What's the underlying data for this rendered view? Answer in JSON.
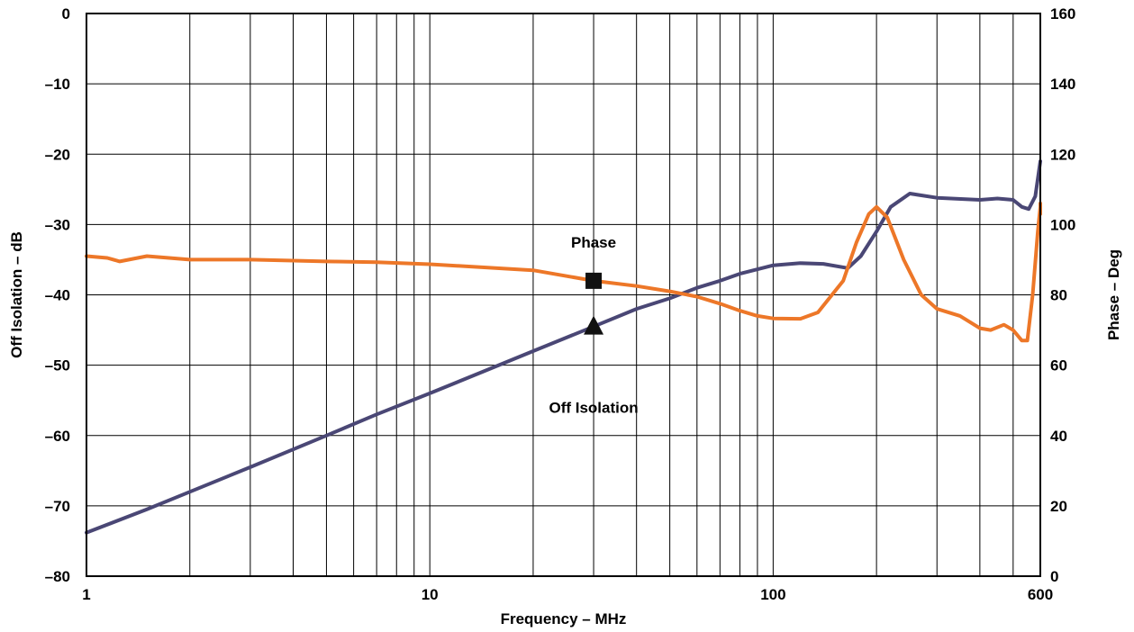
{
  "chart_data": {
    "type": "line",
    "xlabel": "Frequency – MHz",
    "ylabel_left": "Off Isolation – dB",
    "ylabel_right": "Phase – Deg",
    "x_scale": "log",
    "xlim": [
      1,
      600
    ],
    "ylim_left": [
      -80,
      0
    ],
    "ylim_right": [
      0,
      160
    ],
    "grid": true,
    "x_ticks": [
      {
        "value": 1,
        "label": "1"
      },
      {
        "value": 10,
        "label": "10"
      },
      {
        "value": 100,
        "label": "100"
      },
      {
        "value": 600,
        "label": "600"
      }
    ],
    "y_left_ticks": [
      {
        "value": 0,
        "label": "0"
      },
      {
        "value": -10,
        "label": "–10"
      },
      {
        "value": -20,
        "label": "–20"
      },
      {
        "value": -30,
        "label": "–30"
      },
      {
        "value": -40,
        "label": "–40"
      },
      {
        "value": -50,
        "label": "–50"
      },
      {
        "value": -60,
        "label": "–60"
      },
      {
        "value": -70,
        "label": "–70"
      },
      {
        "value": -80,
        "label": "–80"
      }
    ],
    "y_right_ticks": [
      {
        "value": 0,
        "label": "0"
      },
      {
        "value": 20,
        "label": "20"
      },
      {
        "value": 40,
        "label": "40"
      },
      {
        "value": 60,
        "label": "60"
      },
      {
        "value": 80,
        "label": "80"
      },
      {
        "value": 100,
        "label": "100"
      },
      {
        "value": 120,
        "label": "120"
      },
      {
        "value": 140,
        "label": "140"
      },
      {
        "value": 160,
        "label": "160"
      }
    ],
    "series": [
      {
        "name": "Off Isolation",
        "axis": "left",
        "color": "#4a4775",
        "marker": "triangle",
        "marker_at": {
          "x": 30,
          "y": -44.5
        },
        "points": [
          {
            "x": 1,
            "y": -73.8
          },
          {
            "x": 1.5,
            "y": -70.5
          },
          {
            "x": 2,
            "y": -68
          },
          {
            "x": 3,
            "y": -64.5
          },
          {
            "x": 5,
            "y": -60
          },
          {
            "x": 7,
            "y": -57
          },
          {
            "x": 10,
            "y": -54
          },
          {
            "x": 15,
            "y": -50.5
          },
          {
            "x": 20,
            "y": -48
          },
          {
            "x": 30,
            "y": -44.5
          },
          {
            "x": 40,
            "y": -42
          },
          {
            "x": 50,
            "y": -40.5
          },
          {
            "x": 60,
            "y": -39
          },
          {
            "x": 70,
            "y": -38
          },
          {
            "x": 80,
            "y": -37
          },
          {
            "x": 100,
            "y": -35.8
          },
          {
            "x": 120,
            "y": -35.5
          },
          {
            "x": 140,
            "y": -35.6
          },
          {
            "x": 165,
            "y": -36.2
          },
          {
            "x": 180,
            "y": -34.5
          },
          {
            "x": 200,
            "y": -31
          },
          {
            "x": 220,
            "y": -27.5
          },
          {
            "x": 250,
            "y": -25.6
          },
          {
            "x": 300,
            "y": -26.2
          },
          {
            "x": 400,
            "y": -26.5
          },
          {
            "x": 450,
            "y": -26.3
          },
          {
            "x": 500,
            "y": -26.5
          },
          {
            "x": 530,
            "y": -27.5
          },
          {
            "x": 555,
            "y": -27.8
          },
          {
            "x": 580,
            "y": -26
          },
          {
            "x": 600,
            "y": -21
          }
        ]
      },
      {
        "name": "Phase",
        "axis": "right",
        "color": "#ed7728",
        "marker": "square",
        "marker_at": {
          "x": 30,
          "y": 84
        },
        "points": [
          {
            "x": 1,
            "y": 91
          },
          {
            "x": 1.15,
            "y": 90.5
          },
          {
            "x": 1.25,
            "y": 89.5
          },
          {
            "x": 1.5,
            "y": 91
          },
          {
            "x": 2,
            "y": 90
          },
          {
            "x": 3,
            "y": 90
          },
          {
            "x": 5,
            "y": 89.5
          },
          {
            "x": 7,
            "y": 89.3
          },
          {
            "x": 10,
            "y": 88.7
          },
          {
            "x": 20,
            "y": 87
          },
          {
            "x": 30,
            "y": 84
          },
          {
            "x": 40,
            "y": 82.5
          },
          {
            "x": 50,
            "y": 81
          },
          {
            "x": 60,
            "y": 79.5
          },
          {
            "x": 70,
            "y": 77.5
          },
          {
            "x": 80,
            "y": 75.5
          },
          {
            "x": 90,
            "y": 74
          },
          {
            "x": 100,
            "y": 73.3
          },
          {
            "x": 120,
            "y": 73.2
          },
          {
            "x": 135,
            "y": 75
          },
          {
            "x": 160,
            "y": 84
          },
          {
            "x": 175,
            "y": 95
          },
          {
            "x": 190,
            "y": 103
          },
          {
            "x": 200,
            "y": 105
          },
          {
            "x": 215,
            "y": 102
          },
          {
            "x": 240,
            "y": 90
          },
          {
            "x": 270,
            "y": 80
          },
          {
            "x": 300,
            "y": 76
          },
          {
            "x": 350,
            "y": 74
          },
          {
            "x": 400,
            "y": 70.5
          },
          {
            "x": 430,
            "y": 70
          },
          {
            "x": 470,
            "y": 71.5
          },
          {
            "x": 500,
            "y": 70
          },
          {
            "x": 530,
            "y": 67
          },
          {
            "x": 550,
            "y": 67
          },
          {
            "x": 570,
            "y": 80
          },
          {
            "x": 590,
            "y": 98
          },
          {
            "x": 610,
            "y": 105
          },
          {
            "x": 630,
            "y": 106
          },
          {
            "x": 660,
            "y": 103
          }
        ]
      }
    ],
    "annotations": [
      {
        "text": "Phase",
        "x": 30,
        "axis": "right",
        "y": 95
      },
      {
        "text": "Off Isolation",
        "x": 30,
        "axis": "left",
        "y": -56
      }
    ]
  }
}
